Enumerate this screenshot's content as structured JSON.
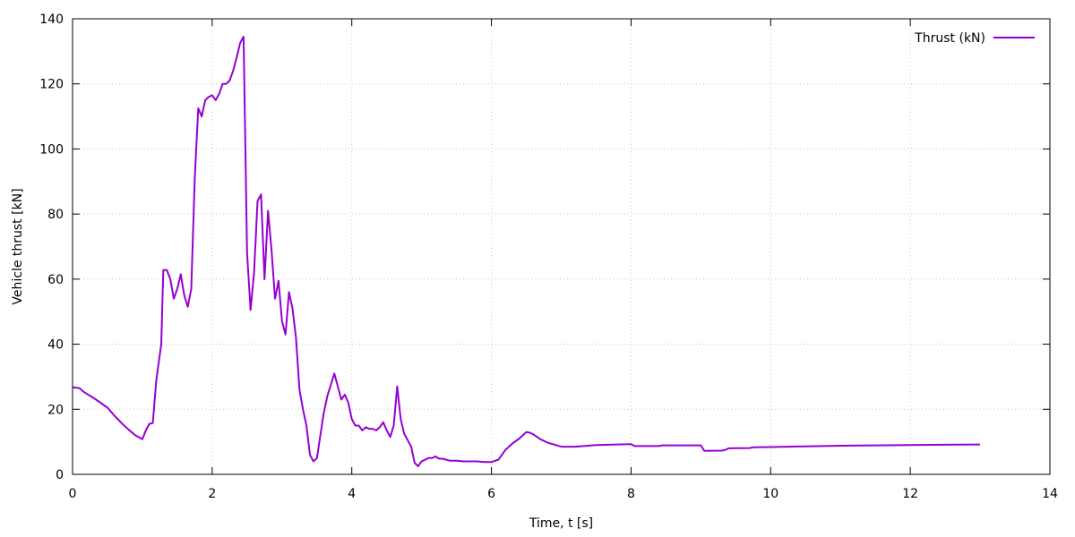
{
  "chart_data": {
    "type": "line",
    "title": "",
    "xlabel": "Time, t [s]",
    "ylabel": "Vehicle thrust [kN]",
    "xlim": [
      0,
      14
    ],
    "ylim": [
      0,
      140
    ],
    "xticks": [
      0,
      2,
      4,
      6,
      8,
      10,
      12,
      14
    ],
    "yticks": [
      0,
      20,
      40,
      60,
      80,
      100,
      120,
      140
    ],
    "grid": true,
    "legend_position": "top-right",
    "series": [
      {
        "name": "Thrust (kN)",
        "color": "#9400d3",
        "x": [
          0.0,
          0.1,
          0.15,
          0.2,
          0.3,
          0.4,
          0.5,
          0.6,
          0.7,
          0.8,
          0.9,
          1.0,
          1.05,
          1.1,
          1.15,
          1.2,
          1.27,
          1.3,
          1.35,
          1.4,
          1.45,
          1.5,
          1.55,
          1.6,
          1.65,
          1.7,
          1.75,
          1.8,
          1.85,
          1.9,
          1.95,
          2.0,
          2.05,
          2.1,
          2.15,
          2.2,
          2.25,
          2.3,
          2.35,
          2.4,
          2.45,
          2.5,
          2.55,
          2.6,
          2.65,
          2.7,
          2.75,
          2.8,
          2.85,
          2.9,
          2.95,
          3.0,
          3.05,
          3.1,
          3.15,
          3.2,
          3.25,
          3.3,
          3.35,
          3.4,
          3.45,
          3.5,
          3.55,
          3.6,
          3.65,
          3.7,
          3.75,
          3.8,
          3.85,
          3.9,
          3.95,
          4.0,
          4.05,
          4.1,
          4.15,
          4.2,
          4.25,
          4.3,
          4.35,
          4.4,
          4.45,
          4.5,
          4.55,
          4.6,
          4.65,
          4.7,
          4.75,
          4.8,
          4.85,
          4.9,
          4.95,
          5.0,
          5.05,
          5.1,
          5.15,
          5.2,
          5.25,
          5.3,
          5.35,
          5.4,
          5.5,
          5.6,
          5.7,
          5.8,
          5.9,
          6.0,
          6.1,
          6.2,
          6.3,
          6.4,
          6.5,
          6.55,
          6.6,
          6.7,
          6.8,
          7.0,
          7.2,
          7.5,
          8.0,
          8.05,
          8.4,
          8.45,
          9.0,
          9.05,
          9.3,
          9.35,
          9.4,
          9.7,
          9.75,
          10.0,
          10.5,
          11.0,
          11.5,
          12.0,
          12.5,
          13.0
        ],
        "y": [
          26.8,
          26.5,
          25.5,
          24.8,
          23.5,
          22.0,
          20.5,
          18.0,
          15.8,
          13.8,
          12.0,
          10.8,
          13.5,
          15.5,
          15.8,
          29.0,
          40.0,
          62.8,
          62.8,
          60.0,
          54.0,
          57.0,
          61.5,
          55.0,
          51.5,
          57.0,
          91.0,
          112.5,
          110.0,
          115.0,
          116.0,
          116.5,
          115.0,
          117.0,
          120.0,
          120.0,
          121.0,
          124.0,
          128.0,
          132.5,
          134.5,
          68.0,
          50.5,
          62.0,
          84.0,
          86.0,
          60.0,
          81.0,
          69.0,
          54.0,
          59.5,
          47.0,
          43.0,
          56.0,
          51.0,
          42.0,
          26.0,
          20.0,
          15.0,
          6.0,
          4.0,
          5.0,
          12.0,
          19.0,
          24.0,
          27.5,
          31.0,
          27.0,
          23.0,
          24.5,
          22.0,
          17.0,
          15.0,
          15.0,
          13.5,
          14.5,
          14.0,
          14.0,
          13.5,
          14.5,
          16.0,
          13.5,
          11.5,
          15.0,
          27.0,
          17.0,
          12.5,
          10.5,
          8.5,
          3.5,
          2.5,
          4.0,
          4.5,
          5.0,
          5.0,
          5.5,
          4.8,
          4.8,
          4.5,
          4.2,
          4.2,
          4.0,
          4.0,
          4.0,
          3.8,
          3.8,
          4.5,
          7.5,
          9.5,
          11.0,
          13.0,
          12.8,
          12.3,
          10.8,
          9.8,
          8.5,
          8.5,
          9.0,
          9.3,
          8.7,
          8.7,
          8.9,
          8.9,
          7.2,
          7.3,
          7.5,
          8.0,
          8.1,
          8.3,
          8.4,
          8.6,
          8.8,
          8.9,
          9.0,
          9.1,
          9.2
        ]
      }
    ]
  }
}
